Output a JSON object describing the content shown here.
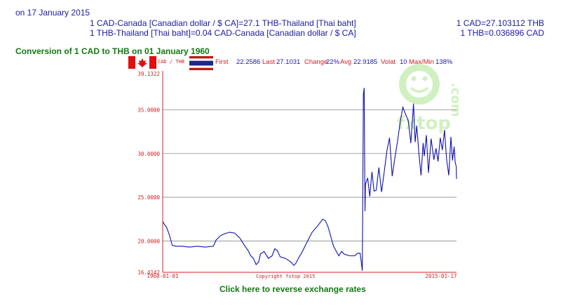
{
  "info": {
    "date_line": "on 17 January 2015",
    "rate_line1": "1 CAD-Canada [Canadian dollar / $ CA]=27.1 THB-Thailand [Thai baht]",
    "rate_line2": "1 THB-Thailand [Thai baht]=0.04 CAD-Canada [Canadian dollar / $ CA]",
    "rate_right1": "1 CAD=27.103112 THB",
    "rate_right2": "1 THB=0.036896 CAD"
  },
  "heading": "Conversion of 1 CAD to THB on 01 January 1960",
  "reverse_link": "Click here to reverse exchange rates",
  "chart_data": {
    "type": "line",
    "pair_label": "CAD / THB",
    "stats": [
      {
        "label": "First",
        "value": "22.2586"
      },
      {
        "label": "Last",
        "value": "27.1031"
      },
      {
        "label": "Change",
        "value": "22%"
      },
      {
        "label": "Avg",
        "value": "22.9185"
      },
      {
        "label": "Volat",
        "value": "10"
      },
      {
        "label": "Max/Min",
        "value": "138%"
      }
    ],
    "y_ticks": [
      "39.1322",
      "35.0000",
      "30.0000",
      "25.0000",
      "20.0000",
      "16.4142"
    ],
    "ylim": [
      16.4142,
      39.1322
    ],
    "x_tick_start": "1960-01-01",
    "x_tick_end": "2015-01-17",
    "xlim": [
      1960.0,
      2015.05
    ],
    "watermark": "fxtop.com",
    "copyright": "Copyright fxtop 2015",
    "grid": true,
    "colors": {
      "line": "#1010b0",
      "axis": "#d02020",
      "label": "#d02020",
      "value": "#1a1aa6",
      "grid": "#888888"
    },
    "series": [
      {
        "x": [
          1960.0,
          1960.3,
          1960.7,
          1961.2,
          1961.8,
          1962.5,
          1963.5,
          1965.0,
          1966.5,
          1968.0,
          1969.5,
          1970.0,
          1970.8,
          1971.5,
          1972.5,
          1973.5,
          1974.5,
          1975.2,
          1976.0,
          1976.5,
          1977.0,
          1977.5,
          1978.0,
          1978.3,
          1979.0,
          1979.8,
          1980.5,
          1981.0,
          1981.5,
          1982.0,
          1983.0,
          1984.0,
          1984.6,
          1985.0,
          1985.5,
          1986.0,
          1987.0,
          1988.0,
          1989.0,
          1989.5,
          1990.0,
          1990.5,
          1991.0,
          1992.0,
          1993.0,
          1993.5,
          1994.0,
          1995.0,
          1996.0,
          1996.5,
          1997.0,
          1997.4,
          1997.6,
          1997.75,
          1997.9,
          1998.0,
          1998.4,
          1998.8,
          1999.2,
          1999.6,
          2000.0,
          2000.5,
          2001.0,
          2001.5,
          2002.0,
          2002.5,
          2003.0,
          2003.5,
          2004.0,
          2004.5,
          2005.0,
          2005.5,
          2006.0,
          2006.5,
          2007.0,
          2007.3,
          2007.6,
          2008.0,
          2008.4,
          2008.8,
          2009.0,
          2009.4,
          2009.8,
          2010.3,
          2010.8,
          2011.2,
          2011.6,
          2012.0,
          2012.4,
          2012.8,
          2013.2,
          2013.6,
          2014.0,
          2014.3,
          2014.6,
          2014.8,
          2015.0,
          2015.05
        ],
        "y": [
          22.26,
          21.9,
          21.6,
          20.8,
          19.5,
          19.4,
          19.4,
          19.3,
          19.4,
          19.3,
          19.4,
          20.1,
          20.6,
          20.8,
          21.0,
          20.9,
          20.3,
          19.6,
          18.9,
          18.3,
          18.0,
          17.3,
          17.6,
          18.5,
          18.8,
          18.0,
          18.3,
          19.1,
          18.9,
          18.2,
          18.0,
          17.6,
          17.2,
          17.5,
          18.1,
          18.6,
          19.8,
          21.0,
          21.7,
          22.1,
          22.5,
          22.3,
          21.6,
          19.4,
          18.3,
          18.8,
          18.5,
          18.3,
          18.3,
          18.6,
          18.6,
          16.6,
          36.8,
          37.5,
          23.4,
          26.5,
          27.2,
          25.1,
          27.9,
          25.7,
          25.8,
          28.4,
          25.6,
          27.9,
          30.3,
          31.8,
          27.4,
          29.5,
          31.4,
          33.6,
          35.3,
          34.5,
          33.8,
          31.2,
          35.7,
          31.3,
          33.2,
          30.1,
          27.5,
          31.2,
          29.7,
          32.1,
          27.8,
          31.7,
          29.3,
          30.6,
          29.1,
          31.8,
          30.4,
          32.7,
          29.3,
          27.5,
          31.9,
          29.2,
          30.8,
          29.0,
          28.5,
          27.1
        ]
      }
    ]
  }
}
